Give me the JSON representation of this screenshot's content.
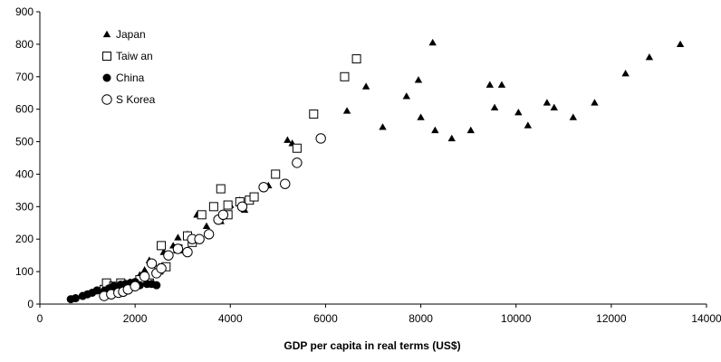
{
  "chart_data": {
    "type": "scatter",
    "title": "",
    "xlabel": "GDP per capita in real terms (US$)",
    "ylabel": "",
    "xlim": [
      0,
      14000
    ],
    "ylim": [
      0,
      900
    ],
    "x_ticks": [
      0,
      2000,
      4000,
      6000,
      8000,
      10000,
      12000,
      14000
    ],
    "y_ticks": [
      0,
      100,
      200,
      300,
      400,
      500,
      600,
      700,
      800,
      900
    ],
    "grid": false,
    "legend_position": "top-left",
    "series": [
      {
        "name": "Japan",
        "marker": "filled-triangle",
        "color": "#000000",
        "points": [
          [
            1500,
            60
          ],
          [
            1700,
            65
          ],
          [
            1900,
            68
          ],
          [
            2100,
            90
          ],
          [
            2200,
            105
          ],
          [
            2300,
            135
          ],
          [
            2500,
            115
          ],
          [
            2600,
            160
          ],
          [
            2800,
            180
          ],
          [
            2900,
            205
          ],
          [
            3100,
            215
          ],
          [
            3300,
            275
          ],
          [
            3500,
            240
          ],
          [
            3800,
            255
          ],
          [
            4000,
            305
          ],
          [
            4200,
            320
          ],
          [
            4300,
            290
          ],
          [
            4500,
            325
          ],
          [
            4800,
            365
          ],
          [
            5200,
            505
          ],
          [
            5300,
            495
          ],
          [
            6450,
            595
          ],
          [
            6850,
            670
          ],
          [
            7200,
            545
          ],
          [
            7700,
            640
          ],
          [
            7950,
            690
          ],
          [
            8000,
            575
          ],
          [
            8250,
            805
          ],
          [
            8300,
            535
          ],
          [
            8650,
            510
          ],
          [
            9050,
            535
          ],
          [
            9550,
            605
          ],
          [
            9450,
            675
          ],
          [
            9700,
            675
          ],
          [
            10050,
            590
          ],
          [
            10250,
            550
          ],
          [
            10650,
            620
          ],
          [
            10800,
            605
          ],
          [
            11200,
            575
          ],
          [
            11650,
            620
          ],
          [
            12300,
            710
          ],
          [
            12800,
            760
          ],
          [
            13450,
            800
          ]
        ]
      },
      {
        "name": "Taiw an",
        "marker": "open-square",
        "color": "#000000",
        "points": [
          [
            1350,
            45
          ],
          [
            1400,
            65
          ],
          [
            1550,
            55
          ],
          [
            1700,
            65
          ],
          [
            1900,
            55
          ],
          [
            2100,
            75
          ],
          [
            2300,
            65
          ],
          [
            2500,
            105
          ],
          [
            2550,
            180
          ],
          [
            2650,
            115
          ],
          [
            2900,
            170
          ],
          [
            3100,
            210
          ],
          [
            3200,
            190
          ],
          [
            3400,
            275
          ],
          [
            3650,
            300
          ],
          [
            3800,
            355
          ],
          [
            3950,
            305
          ],
          [
            3950,
            275
          ],
          [
            4200,
            315
          ],
          [
            4400,
            320
          ],
          [
            4500,
            330
          ],
          [
            4950,
            400
          ],
          [
            5400,
            480
          ],
          [
            5750,
            585
          ],
          [
            6400,
            700
          ],
          [
            6650,
            755
          ]
        ]
      },
      {
        "name": "China",
        "marker": "filled-circle",
        "color": "#000000",
        "points": [
          [
            650,
            15
          ],
          [
            750,
            18
          ],
          [
            900,
            25
          ],
          [
            1000,
            30
          ],
          [
            1100,
            35
          ],
          [
            1200,
            42
          ],
          [
            1350,
            40
          ],
          [
            1450,
            48
          ],
          [
            1550,
            55
          ],
          [
            1700,
            60
          ],
          [
            1800,
            62
          ],
          [
            1900,
            65
          ],
          [
            2000,
            68
          ],
          [
            2100,
            58
          ],
          [
            2250,
            62
          ],
          [
            2350,
            62
          ],
          [
            2450,
            58
          ]
        ]
      },
      {
        "name": "S Korea",
        "marker": "open-circle",
        "color": "#000000",
        "points": [
          [
            1350,
            25
          ],
          [
            1500,
            30
          ],
          [
            1650,
            35
          ],
          [
            1750,
            38
          ],
          [
            1850,
            45
          ],
          [
            2000,
            55
          ],
          [
            2200,
            85
          ],
          [
            2350,
            125
          ],
          [
            2450,
            95
          ],
          [
            2550,
            110
          ],
          [
            2700,
            150
          ],
          [
            2900,
            170
          ],
          [
            3100,
            160
          ],
          [
            3200,
            200
          ],
          [
            3350,
            200
          ],
          [
            3550,
            215
          ],
          [
            3750,
            260
          ],
          [
            3850,
            275
          ],
          [
            4250,
            300
          ],
          [
            4700,
            360
          ],
          [
            5150,
            370
          ],
          [
            5400,
            435
          ],
          [
            5900,
            510
          ]
        ]
      }
    ]
  }
}
